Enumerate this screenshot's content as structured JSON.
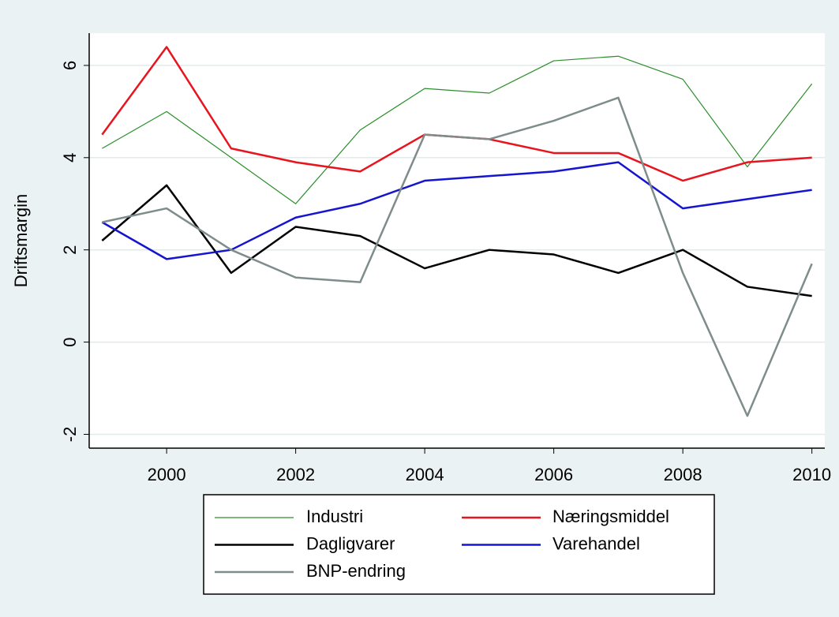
{
  "chart_data": {
    "type": "line",
    "y_label": "Driftsmargin",
    "x": [
      1999,
      2000,
      2001,
      2002,
      2003,
      2004,
      2005,
      2006,
      2007,
      2008,
      2009,
      2010
    ],
    "series": [
      {
        "name": "Industri",
        "color": "#2a8f2a",
        "values": [
          4.2,
          5.0,
          4.0,
          3.0,
          4.6,
          5.5,
          5.4,
          6.1,
          6.2,
          5.7,
          3.8,
          5.6
        ]
      },
      {
        "name": "Næringsmiddel",
        "color": "#e8141e",
        "values": [
          4.5,
          6.4,
          4.2,
          3.9,
          3.7,
          4.5,
          4.4,
          4.1,
          4.1,
          3.5,
          3.9,
          4.0
        ]
      },
      {
        "name": "Dagligvarer",
        "color": "#000000",
        "values": [
          2.2,
          3.4,
          1.5,
          2.5,
          2.3,
          1.6,
          2.0,
          1.9,
          1.5,
          2.0,
          1.2,
          1.0
        ]
      },
      {
        "name": "Varehandel",
        "color": "#1515d0",
        "values": [
          2.6,
          1.8,
          2.0,
          2.7,
          3.0,
          3.5,
          3.6,
          3.7,
          3.9,
          2.9,
          3.1,
          3.3
        ]
      },
      {
        "name": "BNP-endring",
        "color": "#7f8c8c",
        "values": [
          2.6,
          2.9,
          2.0,
          1.4,
          1.3,
          4.5,
          4.4,
          4.8,
          5.3,
          1.5,
          -1.6,
          1.7
        ]
      }
    ],
    "xlim": [
      1998.8,
      2010.2
    ],
    "xticks": [
      2000,
      2002,
      2004,
      2006,
      2008,
      2010
    ],
    "ylim": [
      -2.3,
      6.7
    ],
    "yticks": [
      -2,
      0,
      2,
      4,
      6
    ],
    "grid": true,
    "legend": "bottom"
  }
}
